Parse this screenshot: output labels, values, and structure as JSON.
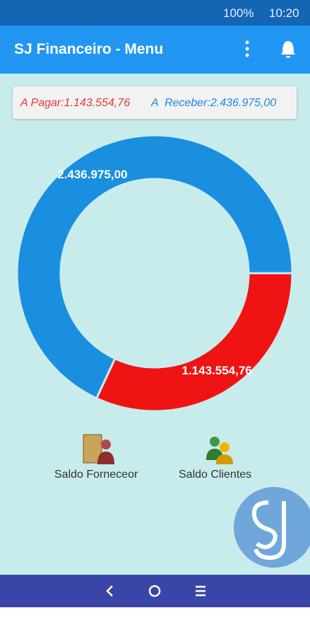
{
  "status_bar": {
    "battery": "100%",
    "time": "10:20"
  },
  "app_bar": {
    "title": "SJ Financeiro - Menu"
  },
  "summary": {
    "pay": "A Pagar:1.143.554,76",
    "receive": "A  Receber:2.436.975,00"
  },
  "chart_data": {
    "type": "pie",
    "values": [
      1143554.76,
      2436975.0
    ],
    "value_labels": [
      "1.143.554,76",
      "2.436.975,00"
    ],
    "colors": [
      "#f01313",
      "#1a8fe0"
    ],
    "hole": true
  },
  "menu": [
    {
      "label": "Saldo Forneceor"
    },
    {
      "label": "Saldo Clientes"
    }
  ]
}
